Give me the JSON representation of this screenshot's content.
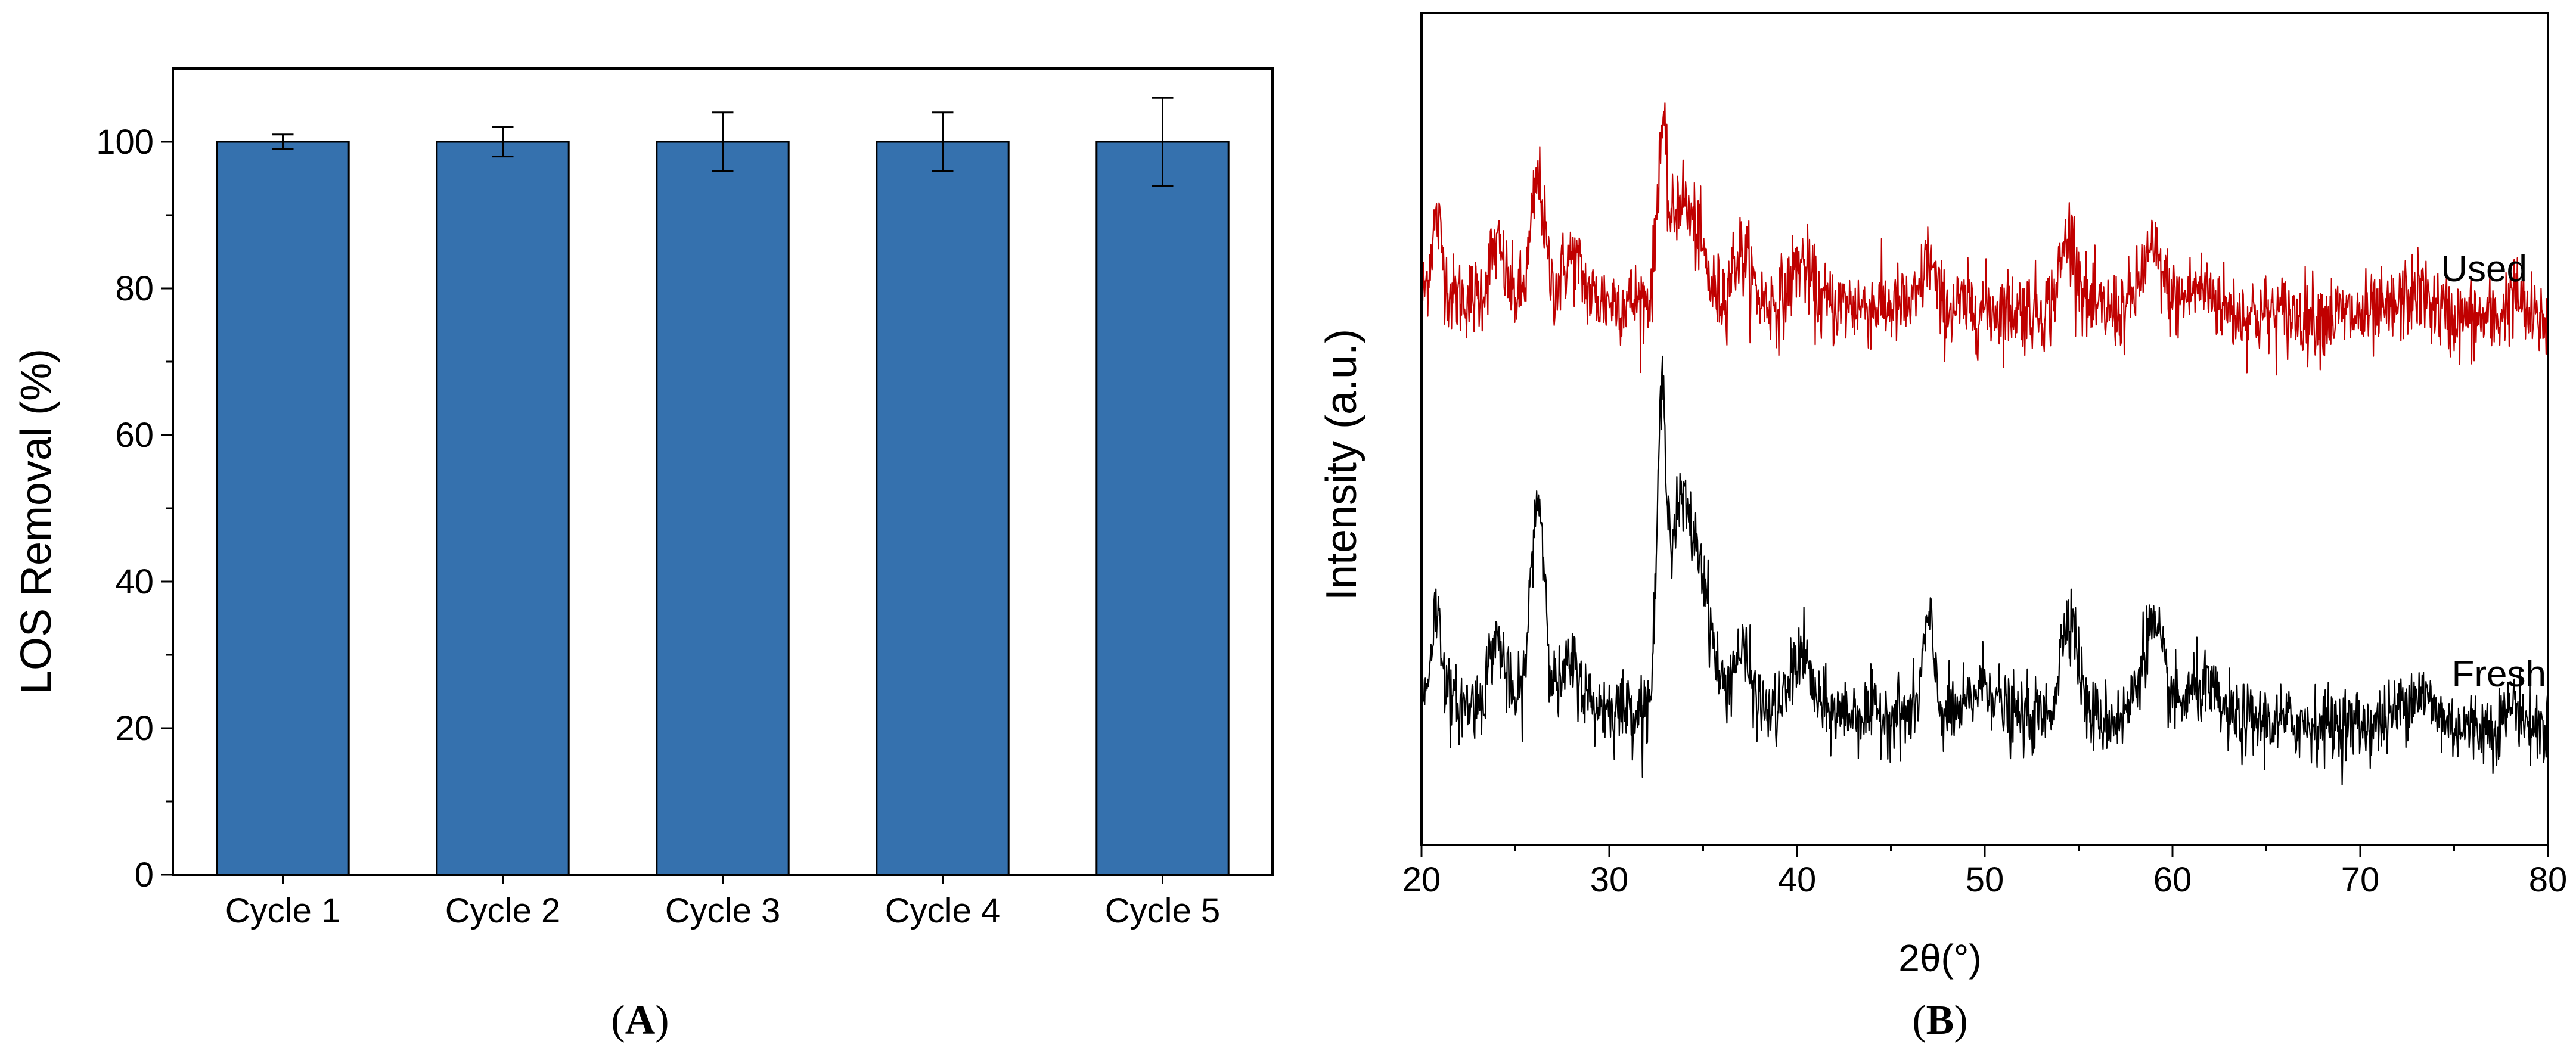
{
  "figure": {
    "panel_a_label": {
      "open": "(",
      "letter": "A",
      "close": ")"
    },
    "panel_b_label": {
      "open": "(",
      "letter": "B",
      "close": ")"
    }
  },
  "chart_data": [
    {
      "type": "bar",
      "panel": "A",
      "title": "",
      "xlabel": "",
      "ylabel": "LOS Removal (%)",
      "ylim": [
        0,
        110
      ],
      "yticks": [
        0,
        20,
        40,
        60,
        80,
        100
      ],
      "ytick_labels": [
        "0",
        "20",
        "40",
        "60",
        "80",
        "100"
      ],
      "grid": false,
      "bar_color": "#3571ae",
      "categories": [
        "Cycle 1",
        "Cycle 2",
        "Cycle 3",
        "Cycle 4",
        "Cycle 5"
      ],
      "values": [
        100,
        100,
        100,
        100,
        100
      ],
      "errors": [
        1,
        2,
        4,
        4,
        6
      ]
    },
    {
      "type": "line",
      "panel": "B",
      "title": "",
      "xlabel": "2θ(°)",
      "ylabel": "Intensity (a.u.)",
      "xlim": [
        20,
        80
      ],
      "xticks": [
        20,
        30,
        40,
        50,
        60,
        70,
        80
      ],
      "xtick_labels": [
        "20",
        "30",
        "40",
        "50",
        "60",
        "70",
        "80"
      ],
      "ylim": [
        0,
        100
      ],
      "yticks_shown": false,
      "grid": false,
      "series": [
        {
          "name": "Used",
          "color": "#c00000",
          "baseline": 66,
          "peaks": [
            {
              "x": 20.8,
              "height": 9,
              "width": 0.3
            },
            {
              "x": 24.0,
              "height": 6,
              "width": 0.4
            },
            {
              "x": 26.2,
              "height": 14,
              "width": 0.35
            },
            {
              "x": 28.0,
              "height": 5,
              "width": 0.5
            },
            {
              "x": 32.8,
              "height": 20,
              "width": 0.25
            },
            {
              "x": 33.7,
              "height": 11,
              "width": 0.4
            },
            {
              "x": 34.6,
              "height": 8,
              "width": 0.5
            },
            {
              "x": 37.0,
              "height": 6,
              "width": 0.5
            },
            {
              "x": 40.2,
              "height": 5,
              "width": 0.5
            },
            {
              "x": 47.0,
              "height": 6,
              "width": 0.3
            },
            {
              "x": 54.5,
              "height": 9,
              "width": 0.45
            },
            {
              "x": 58.9,
              "height": 7,
              "width": 0.6
            },
            {
              "x": 61.5,
              "height": 3,
              "width": 0.8
            },
            {
              "x": 73.0,
              "height": 3,
              "width": 0.8
            },
            {
              "x": 78.2,
              "height": 3,
              "width": 0.4
            }
          ],
          "noise": 4.5,
          "end_value": 63
        },
        {
          "name": "Fresh",
          "color": "#000000",
          "baseline": 17,
          "peaks": [
            {
              "x": 20.8,
              "height": 11,
              "width": 0.3
            },
            {
              "x": 24.0,
              "height": 8,
              "width": 0.4
            },
            {
              "x": 26.2,
              "height": 25,
              "width": 0.38
            },
            {
              "x": 28.0,
              "height": 5,
              "width": 0.5
            },
            {
              "x": 32.8,
              "height": 34,
              "width": 0.25
            },
            {
              "x": 33.7,
              "height": 21,
              "width": 0.5
            },
            {
              "x": 34.8,
              "height": 17,
              "width": 0.6
            },
            {
              "x": 37.0,
              "height": 7,
              "width": 0.5
            },
            {
              "x": 40.2,
              "height": 7,
              "width": 0.5
            },
            {
              "x": 47.0,
              "height": 11,
              "width": 0.3
            },
            {
              "x": 50.0,
              "height": 4,
              "width": 0.6
            },
            {
              "x": 54.5,
              "height": 13,
              "width": 0.45
            },
            {
              "x": 58.9,
              "height": 11,
              "width": 0.6
            },
            {
              "x": 61.5,
              "height": 4,
              "width": 0.8
            },
            {
              "x": 73.0,
              "height": 4,
              "width": 0.8
            },
            {
              "x": 78.2,
              "height": 3,
              "width": 0.4
            }
          ],
          "noise": 4.0,
          "end_value": 14
        }
      ]
    }
  ]
}
